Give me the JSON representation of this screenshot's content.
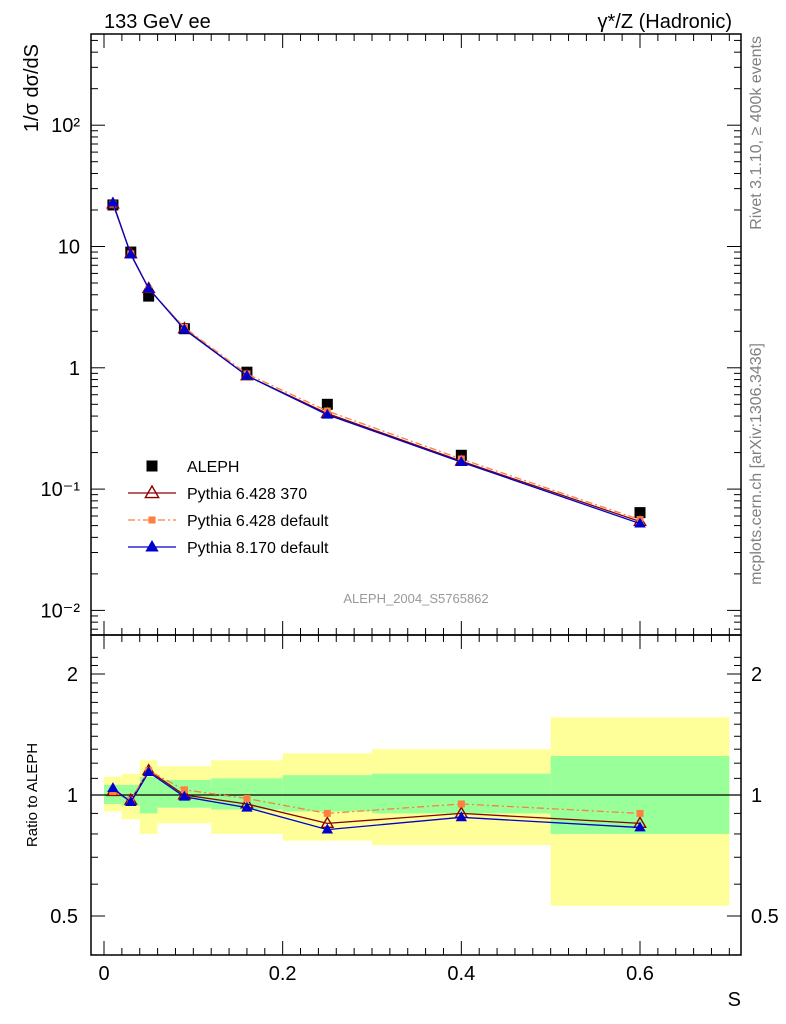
{
  "header": {
    "left_title": "133 GeV ee",
    "right_title": "γ*/Z (Hadronic)"
  },
  "side_labels": {
    "rivet": "Rivet 3.1.10, ≥ 400k events",
    "mcplots": "mcplots.cern.ch [arXiv:1306.3436]"
  },
  "analysis_id": "ALEPH_2004_S5765862",
  "chart_data": [
    {
      "type": "scatter",
      "panel": "main",
      "ylabel": "1/σ  dσ/dS",
      "yscale": "log",
      "xlim": [
        -0.02,
        0.71
      ],
      "ylim": [
        0.006,
        600
      ],
      "ytick_labels": [
        "10⁻²",
        "10⁻¹",
        "1",
        "10",
        "10²"
      ],
      "ytick_values": [
        0.01,
        0.1,
        1,
        10,
        100
      ],
      "legend_position": "bottom-left",
      "x": [
        0.01,
        0.03,
        0.05,
        0.09,
        0.16,
        0.25,
        0.4,
        0.6
      ],
      "series": [
        {
          "name": "ALEPH",
          "style": "data",
          "color": "#000000",
          "values": [
            22.0,
            9.0,
            3.9,
            2.1,
            0.92,
            0.5,
            0.19,
            0.064
          ]
        },
        {
          "name": "Pythia 6.428 370",
          "style": "open-triangle",
          "color": "#8b0000",
          "values": [
            22.4,
            8.7,
            4.5,
            2.1,
            0.86,
            0.42,
            0.17,
            0.054
          ]
        },
        {
          "name": "Pythia 6.428 default",
          "style": "dash-square",
          "color": "#ff7f3f",
          "values": [
            22.4,
            8.7,
            4.45,
            2.15,
            0.89,
            0.44,
            0.177,
            0.056
          ]
        },
        {
          "name": "Pythia 8.170 default",
          "style": "filled-triangle",
          "color": "#0000cc",
          "values": [
            23.0,
            8.6,
            4.5,
            2.07,
            0.86,
            0.41,
            0.167,
            0.052
          ]
        }
      ]
    },
    {
      "type": "line",
      "panel": "ratio",
      "xlabel": "S",
      "ylabel": "Ratio to ALEPH",
      "xlim": [
        -0.02,
        0.71
      ],
      "ylim": [
        0.3,
        2.3
      ],
      "xtick_labels": [
        "0",
        "0.2",
        "0.4",
        "0.6"
      ],
      "xtick_values": [
        0,
        0.2,
        0.4,
        0.6
      ],
      "ytick_labels": [
        "0.5",
        "1",
        "2"
      ],
      "ytick_values": [
        0.5,
        1,
        2
      ],
      "bands": {
        "bin_edges": [
          0,
          0.02,
          0.04,
          0.06,
          0.12,
          0.2,
          0.3,
          0.5,
          0.7
        ],
        "inner_lo": [
          0.95,
          0.94,
          0.9,
          0.93,
          0.92,
          0.91,
          0.9,
          0.8
        ],
        "inner_hi": [
          1.06,
          1.06,
          1.11,
          1.09,
          1.1,
          1.12,
          1.13,
          1.25
        ],
        "outer_lo": [
          0.91,
          0.87,
          0.8,
          0.85,
          0.8,
          0.77,
          0.75,
          0.53
        ],
        "outer_hi": [
          1.11,
          1.13,
          1.22,
          1.18,
          1.22,
          1.27,
          1.3,
          1.56
        ],
        "inner_color": "#99ff99",
        "outer_color": "#ffff99"
      },
      "x": [
        0.01,
        0.03,
        0.05,
        0.09,
        0.16,
        0.25,
        0.4,
        0.6
      ],
      "series": [
        {
          "name": "Pythia 6.428 370",
          "style": "open-triangle",
          "color": "#8b0000",
          "values": [
            1.02,
            0.97,
            1.15,
            1.0,
            0.95,
            0.85,
            0.9,
            0.85
          ]
        },
        {
          "name": "Pythia 6.428 default",
          "style": "dash-square",
          "color": "#ff7f3f",
          "values": [
            1.02,
            0.97,
            1.15,
            1.03,
            0.98,
            0.9,
            0.95,
            0.9
          ]
        },
        {
          "name": "Pythia 8.170 default",
          "style": "filled-triangle",
          "color": "#0000cc",
          "values": [
            1.04,
            0.96,
            1.14,
            0.99,
            0.93,
            0.82,
            0.88,
            0.83
          ]
        }
      ]
    }
  ]
}
